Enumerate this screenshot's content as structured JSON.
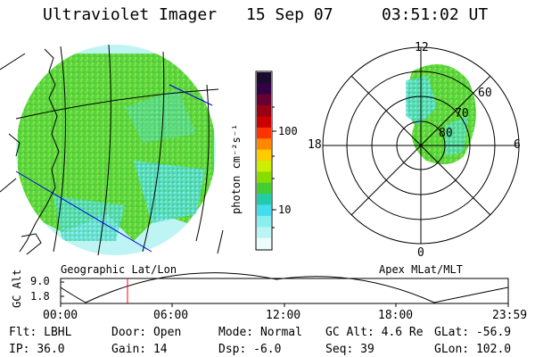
{
  "header": {
    "instrument": "Ultraviolet Imager",
    "date": "15 Sep 07",
    "time": "03:51:02 UT"
  },
  "geo_panel": {
    "label": "Geographic Lat/Lon"
  },
  "colorbar": {
    "unit_label": "photon cm⁻²s⁻¹",
    "ticks": [
      "100",
      "10"
    ],
    "colors": [
      "#1a0a2e",
      "#330044",
      "#660033",
      "#990011",
      "#cc0000",
      "#ff3300",
      "#ff8800",
      "#ffcc00",
      "#ccee00",
      "#88dd00",
      "#44cc33",
      "#22ccaa",
      "#44ddee",
      "#88eeee",
      "#bbf4f4",
      "#eefbfb"
    ]
  },
  "polar_panel": {
    "label": "Apex MLat/MLT",
    "mlt_labels": {
      "top": "12",
      "right": "6",
      "bottom": "0",
      "left": "18"
    },
    "lat_labels": [
      "60",
      "70",
      "80"
    ]
  },
  "altitude_plot": {
    "axis_label": "GC Alt",
    "y_ticks": [
      "9.0",
      "1.8"
    ],
    "x_ticks": [
      "00:00",
      "06:00",
      "12:00",
      "18:00",
      "23:59"
    ],
    "marker_color": "#ff0000"
  },
  "status": {
    "row1": [
      {
        "label": "Flt:",
        "value": "LBHL"
      },
      {
        "label": "Door:",
        "value": "Open"
      },
      {
        "label": "Mode:",
        "value": "Normal"
      },
      {
        "label": "GC Alt:",
        "value": "4.6 Re"
      },
      {
        "label": "GLat:",
        "value": "-56.9"
      }
    ],
    "row2": [
      {
        "label": "IP:",
        "value": "36.0"
      },
      {
        "label": "Gain:",
        "value": "14"
      },
      {
        "label": "Dsp:",
        "value": "-6.0"
      },
      {
        "label": "Seq:",
        "value": "39"
      },
      {
        "label": "GLon:",
        "value": "102.0"
      }
    ]
  }
}
